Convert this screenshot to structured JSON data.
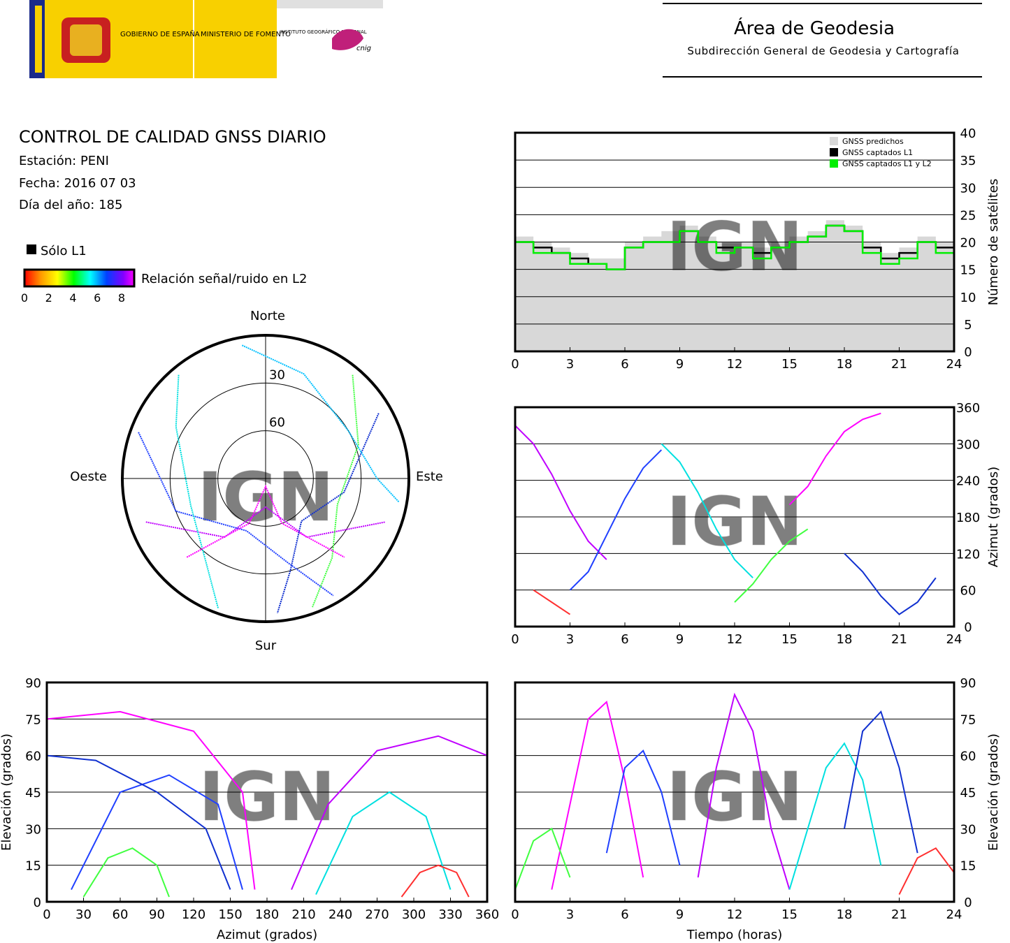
{
  "header": {
    "gov_logo": "GOBIERNO DE ESPAÑA",
    "ministry_logo": "MINISTERIO DE FOMENTO",
    "ign_logo": "INSTITUTO GEOGRÁFICO NACIONAL",
    "cnig_logo": "cnig",
    "title": "Área de Geodesia",
    "subtitle": "Subdirección General de Geodesia y Cartografía"
  },
  "report": {
    "title": "CONTROL DE CALIDAD GNSS DIARIO",
    "station": "Estación: PENI",
    "date": "Fecha: 2016 07 03",
    "day_of_year": "Día del año: 185",
    "l1_only_label": "Sólo L1",
    "colorbar_label": "Relación señal/ruido en L2",
    "colorbar_ticks": [
      0,
      2,
      4,
      6,
      8
    ]
  },
  "chart_data": [
    {
      "type": "polar",
      "watermark": "IGN",
      "direction_labels": {
        "north": "Norte",
        "south": "Sur",
        "east": "Este",
        "west": "Oeste"
      },
      "rlim": [
        90,
        0
      ],
      "rticks": [
        30,
        60
      ],
      "series": [
        {
          "color": "#c000ff",
          "x": [
            250,
            215,
            180,
            145,
            110
          ],
          "values": [
            10,
            45,
            72,
            45,
            10
          ]
        },
        {
          "color": "#2040ff",
          "x": [
            290,
            250,
            200,
            165,
            150
          ],
          "values": [
            5,
            30,
            55,
            35,
            5
          ]
        },
        {
          "color": "#00e0e0",
          "x": [
            320,
            300,
            250,
            215,
            200
          ],
          "values": [
            5,
            25,
            40,
            25,
            3
          ]
        },
        {
          "color": "#40ff40",
          "x": [
            40,
            70,
            110,
            140,
            160
          ],
          "values": [
            5,
            28,
            42,
            25,
            4
          ]
        },
        {
          "color": "#ff00ff",
          "x": [
            225,
            200,
            180,
            160,
            135
          ],
          "values": [
            20,
            60,
            85,
            60,
            20
          ]
        },
        {
          "color": "#1030d0",
          "x": [
            60,
            100,
            140,
            165,
            175
          ],
          "values": [
            8,
            40,
            55,
            30,
            5
          ]
        },
        {
          "color": "#00c0ff",
          "x": [
            350,
            20,
            60,
            90,
            100
          ],
          "values": [
            5,
            20,
            30,
            20,
            5
          ]
        }
      ]
    },
    {
      "type": "line",
      "step": true,
      "watermark": "IGN",
      "ylabel": "Número de satélites",
      "yaxis_side": "right",
      "xlim": [
        0,
        24
      ],
      "xticks": [
        0,
        3,
        6,
        9,
        12,
        15,
        18,
        21,
        24
      ],
      "ylim": [
        0,
        40
      ],
      "yticks": [
        0,
        5,
        10,
        15,
        20,
        25,
        30,
        35,
        40
      ],
      "grid": true,
      "legend": "upper right",
      "x": [
        0,
        1,
        2,
        3,
        4,
        5,
        6,
        7,
        8,
        9,
        10,
        11,
        12,
        13,
        14,
        15,
        16,
        17,
        18,
        19,
        20,
        21,
        22,
        23,
        24
      ],
      "series": [
        {
          "name": "GNSS predichos",
          "color": "#d8d8d8",
          "fill": true,
          "values": [
            21,
            20,
            19,
            18,
            17,
            17,
            20,
            21,
            22,
            23,
            21,
            20,
            20,
            19,
            20,
            21,
            22,
            24,
            23,
            20,
            18,
            19,
            21,
            20,
            20
          ]
        },
        {
          "name": "GNSS captados L1",
          "color": "#000000",
          "values": [
            20,
            19,
            18,
            17,
            16,
            15,
            19,
            20,
            20,
            22,
            20,
            19,
            19,
            18,
            19,
            20,
            21,
            23,
            22,
            19,
            17,
            18,
            20,
            19,
            19
          ]
        },
        {
          "name": "GNSS captados L1 y L2",
          "color": "#00ee00",
          "values": [
            20,
            18,
            18,
            16,
            16,
            15,
            19,
            20,
            20,
            22,
            20,
            18,
            19,
            17,
            19,
            20,
            21,
            23,
            22,
            18,
            16,
            17,
            20,
            18,
            19
          ]
        }
      ]
    },
    {
      "type": "line",
      "watermark": "IGN",
      "ylabel": "Azimut (grados)",
      "yaxis_side": "right",
      "xlim": [
        0,
        24
      ],
      "xticks": [
        0,
        3,
        6,
        9,
        12,
        15,
        18,
        21,
        24
      ],
      "ylim": [
        0,
        360
      ],
      "yticks": [
        0,
        60,
        120,
        180,
        240,
        300,
        360
      ],
      "grid": true,
      "series": [
        {
          "color": "#c000ff",
          "x": [
            0,
            1,
            2,
            3,
            4,
            5
          ],
          "values": [
            330,
            300,
            250,
            190,
            140,
            110
          ]
        },
        {
          "color": "#2040ff",
          "x": [
            3,
            4,
            5,
            6,
            7,
            8
          ],
          "values": [
            60,
            90,
            150,
            210,
            260,
            290
          ]
        },
        {
          "color": "#00e0e0",
          "x": [
            8,
            9,
            10,
            11,
            12,
            13
          ],
          "values": [
            300,
            270,
            220,
            160,
            110,
            80
          ]
        },
        {
          "color": "#40ff40",
          "x": [
            12,
            13,
            14,
            15,
            16
          ],
          "values": [
            40,
            70,
            110,
            140,
            160
          ]
        },
        {
          "color": "#ff00ff",
          "x": [
            15,
            16,
            17,
            18,
            19,
            20
          ],
          "values": [
            200,
            230,
            280,
            320,
            340,
            350
          ]
        },
        {
          "color": "#1030d0",
          "x": [
            18,
            19,
            20,
            21,
            22,
            23
          ],
          "values": [
            120,
            90,
            50,
            20,
            40,
            80
          ]
        },
        {
          "color": "#ff3030",
          "x": [
            1,
            2,
            3
          ],
          "values": [
            60,
            40,
            20
          ]
        }
      ]
    },
    {
      "type": "line",
      "watermark": "IGN",
      "xlabel": "Azimut (grados)",
      "ylabel": "Elevación (grados)",
      "yaxis_side": "left",
      "xlim": [
        0,
        360
      ],
      "xticks": [
        0,
        30,
        60,
        90,
        120,
        150,
        180,
        210,
        240,
        270,
        300,
        330,
        360
      ],
      "ylim": [
        0,
        90
      ],
      "yticks": [
        0,
        15,
        30,
        45,
        60,
        75,
        90
      ],
      "grid": true,
      "series": [
        {
          "color": "#ff00ff",
          "x": [
            0,
            60,
            120,
            160,
            170
          ],
          "values": [
            75,
            78,
            70,
            45,
            5
          ]
        },
        {
          "color": "#c000ff",
          "x": [
            200,
            230,
            270,
            320,
            360
          ],
          "values": [
            5,
            40,
            62,
            68,
            60
          ]
        },
        {
          "color": "#2040ff",
          "x": [
            20,
            60,
            100,
            140,
            160
          ],
          "values": [
            5,
            45,
            52,
            40,
            5
          ]
        },
        {
          "color": "#00e0e0",
          "x": [
            220,
            250,
            280,
            310,
            330
          ],
          "values": [
            3,
            35,
            45,
            35,
            5
          ]
        },
        {
          "color": "#40ff40",
          "x": [
            30,
            50,
            70,
            90,
            100
          ],
          "values": [
            2,
            18,
            22,
            15,
            2
          ]
        },
        {
          "color": "#ff3030",
          "x": [
            290,
            305,
            320,
            335,
            345
          ],
          "values": [
            2,
            12,
            15,
            12,
            2
          ]
        },
        {
          "color": "#1030d0",
          "x": [
            0,
            40,
            90,
            130,
            150
          ],
          "values": [
            60,
            58,
            45,
            30,
            5
          ]
        }
      ]
    },
    {
      "type": "line",
      "watermark": "IGN",
      "xlabel": "Tiempo (horas)",
      "ylabel": "Elevación (grados)",
      "yaxis_side": "right",
      "xlim": [
        0,
        24
      ],
      "xticks": [
        0,
        3,
        6,
        9,
        12,
        15,
        18,
        21,
        24
      ],
      "ylim": [
        0,
        90
      ],
      "yticks": [
        0,
        15,
        30,
        45,
        60,
        75,
        90
      ],
      "grid": true,
      "series": [
        {
          "color": "#ff00ff",
          "x": [
            2,
            3,
            4,
            5,
            6,
            7
          ],
          "values": [
            5,
            40,
            75,
            82,
            50,
            10
          ]
        },
        {
          "color": "#c000ff",
          "x": [
            10,
            11,
            12,
            13,
            14,
            15
          ],
          "values": [
            10,
            55,
            85,
            70,
            30,
            5
          ]
        },
        {
          "color": "#2040ff",
          "x": [
            5,
            6,
            7,
            8,
            9
          ],
          "values": [
            20,
            55,
            62,
            45,
            15
          ]
        },
        {
          "color": "#00e0e0",
          "x": [
            15,
            16,
            17,
            18,
            19,
            20
          ],
          "values": [
            5,
            30,
            55,
            65,
            50,
            15
          ]
        },
        {
          "color": "#40ff40",
          "x": [
            0,
            1,
            2,
            3
          ],
          "values": [
            5,
            25,
            30,
            10
          ]
        },
        {
          "color": "#ff3030",
          "x": [
            21,
            22,
            23,
            24
          ],
          "values": [
            3,
            18,
            22,
            12
          ]
        },
        {
          "color": "#1030d0",
          "x": [
            18,
            19,
            20,
            21,
            22
          ],
          "values": [
            30,
            70,
            78,
            55,
            20
          ]
        }
      ]
    }
  ]
}
